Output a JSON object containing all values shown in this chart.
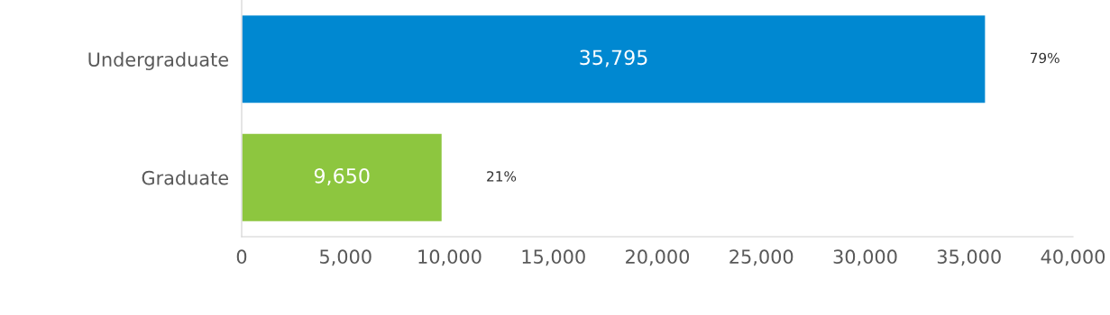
{
  "chart_data": {
    "type": "bar",
    "orientation": "horizontal",
    "categories": [
      "Undergraduate",
      "Graduate"
    ],
    "values": [
      35795,
      9650
    ],
    "colors": [
      "#0088d1",
      "#8dc63f"
    ],
    "value_labels": [
      "35,795",
      "9,650"
    ],
    "annotations": [
      "79%",
      "21%"
    ],
    "xlim": [
      0,
      40000
    ],
    "xticks": [
      0,
      {
        "value": 5000,
        "label": "5,000"
      },
      {
        "value": 10000,
        "label": "10,000"
      },
      {
        "value": 15000,
        "label": "15,000"
      },
      {
        "value": 20000,
        "label": "20,000"
      },
      {
        "value": 25000,
        "label": "25,000"
      },
      {
        "value": 30000,
        "label": "30,000"
      },
      {
        "value": 35000,
        "label": "35,000"
      },
      {
        "value": 40000,
        "label": "40,000"
      }
    ],
    "grid": false,
    "legend": false
  }
}
